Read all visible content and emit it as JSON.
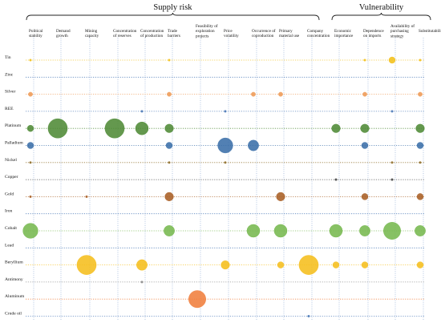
{
  "chart_data": {
    "type": "scatter",
    "groups": [
      {
        "name": "Supply risk",
        "span": [
          "Political stability",
          "Company concentration"
        ]
      },
      {
        "name": "Vulnerability",
        "span": [
          "Economic importance",
          "Substitutability"
        ]
      }
    ],
    "columns": [
      "Political stability",
      "Demand growth",
      "Mining capacity",
      "Concentration of reserves",
      "Concentration of production",
      "Trade barriers",
      "Feasibility of exploration projects",
      "Price volatility",
      "Occurrence of coproduction",
      "Primary material use",
      "Company concentration",
      "Economic importance",
      "Dependence on imports",
      "Availability of purchasing strategy",
      "Substitutability"
    ],
    "rows": [
      {
        "name": "Tin",
        "color": "#F2C01A",
        "values": [
          1,
          0,
          0,
          0,
          0,
          1,
          0,
          0,
          0,
          0,
          0,
          0,
          1,
          3,
          1
        ]
      },
      {
        "name": "Zinc",
        "color": "#4A78B6",
        "values": [
          0,
          0,
          0,
          0,
          0,
          0,
          0,
          0,
          0,
          0,
          0,
          0,
          0,
          0,
          0
        ]
      },
      {
        "name": "Silver",
        "color": "#EE9A55",
        "values": [
          2,
          0,
          0,
          0,
          0,
          2,
          0,
          0,
          2,
          2,
          0,
          0,
          2,
          0,
          2
        ]
      },
      {
        "name": "REE",
        "color": "#4A78B6",
        "values": [
          0,
          0,
          0,
          0,
          1,
          0,
          0,
          1,
          0,
          0,
          0,
          0,
          0,
          1,
          0
        ]
      },
      {
        "name": "Platinum",
        "color": "#4E8A35",
        "values": [
          3,
          9,
          0,
          9,
          6,
          4,
          0,
          0,
          0,
          0,
          0,
          4,
          4,
          0,
          4
        ]
      },
      {
        "name": "Palladium",
        "color": "#3A6EA8",
        "values": [
          3,
          0,
          0,
          0,
          0,
          3,
          0,
          7,
          5,
          0,
          0,
          0,
          3,
          0,
          3
        ]
      },
      {
        "name": "Nickel",
        "color": "#8F6E2A",
        "values": [
          1,
          0,
          0,
          0,
          0,
          1,
          0,
          1,
          0,
          0,
          0,
          0,
          0,
          1,
          1
        ]
      },
      {
        "name": "Copper",
        "color": "#444444",
        "values": [
          0,
          0,
          0,
          0,
          0,
          0,
          0,
          0,
          0,
          0,
          0,
          1,
          0,
          1,
          0
        ]
      },
      {
        "name": "Gold",
        "color": "#A85E24",
        "values": [
          1,
          0,
          1,
          0,
          0,
          4,
          0,
          0,
          0,
          4,
          0,
          0,
          3,
          0,
          3
        ]
      },
      {
        "name": "Iron",
        "color": "#4A78B6",
        "values": [
          0,
          0,
          0,
          0,
          0,
          0,
          0,
          0,
          0,
          0,
          0,
          0,
          0,
          0,
          0
        ]
      },
      {
        "name": "Cobalt",
        "color": "#76B84F",
        "values": [
          7,
          0,
          0,
          0,
          0,
          5,
          0,
          0,
          6,
          6,
          0,
          6,
          5,
          8,
          5
        ]
      },
      {
        "name": "Lead",
        "color": "#4A78B6",
        "values": [
          0,
          0,
          0,
          0,
          0,
          0,
          0,
          0,
          0,
          0,
          0,
          0,
          0,
          0,
          0
        ]
      },
      {
        "name": "Beryllium",
        "color": "#F5BE1D",
        "values": [
          0,
          0,
          9,
          0,
          5,
          0,
          0,
          4,
          0,
          3,
          9,
          3,
          3,
          0,
          3
        ]
      },
      {
        "name": "Antimony",
        "color": "#8A8A8A",
        "values": [
          0,
          0,
          0,
          0,
          1,
          0,
          0,
          0,
          0,
          0,
          0,
          0,
          0,
          0,
          0
        ]
      },
      {
        "name": "Aluminum",
        "color": "#F07E3C",
        "values": [
          0,
          0,
          0,
          0,
          0,
          0,
          8,
          0,
          0,
          0,
          0,
          0,
          0,
          0,
          0
        ]
      },
      {
        "name": "Crude oil",
        "color": "#4A78B6",
        "values": [
          0,
          0,
          0,
          0,
          0,
          0,
          0,
          0,
          0,
          0,
          1,
          0,
          0,
          0,
          0
        ]
      }
    ]
  }
}
